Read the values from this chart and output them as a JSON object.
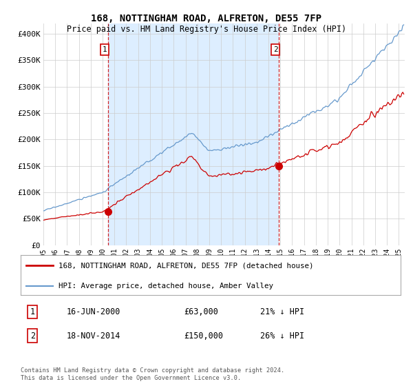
{
  "title": "168, NOTTINGHAM ROAD, ALFRETON, DE55 7FP",
  "subtitle": "Price paid vs. HM Land Registry's House Price Index (HPI)",
  "background_color": "#ffffff",
  "grid_color": "#cccccc",
  "ylim": [
    0,
    420000
  ],
  "yticks": [
    0,
    50000,
    100000,
    150000,
    200000,
    250000,
    300000,
    350000,
    400000
  ],
  "ytick_labels": [
    "£0",
    "£50K",
    "£100K",
    "£150K",
    "£200K",
    "£250K",
    "£300K",
    "£350K",
    "£400K"
  ],
  "xlim_start": 1995.0,
  "xlim_end": 2025.5,
  "purchase1_x": 2000.46,
  "purchase1_y": 63000,
  "purchase1_label": "1",
  "purchase1_date": "16-JUN-2000",
  "purchase1_price": "£63,000",
  "purchase1_hpi": "21% ↓ HPI",
  "purchase2_x": 2014.88,
  "purchase2_y": 150000,
  "purchase2_label": "2",
  "purchase2_date": "18-NOV-2014",
  "purchase2_price": "£150,000",
  "purchase2_hpi": "26% ↓ HPI",
  "line1_color": "#cc0000",
  "line2_color": "#6699cc",
  "shade_color": "#ddeeff",
  "vline_color": "#cc0000",
  "marker_color": "#cc0000",
  "legend1_label": "168, NOTTINGHAM ROAD, ALFRETON, DE55 7FP (detached house)",
  "legend2_label": "HPI: Average price, detached house, Amber Valley",
  "footer": "Contains HM Land Registry data © Crown copyright and database right 2024.\nThis data is licensed under the Open Government Licence v3.0."
}
